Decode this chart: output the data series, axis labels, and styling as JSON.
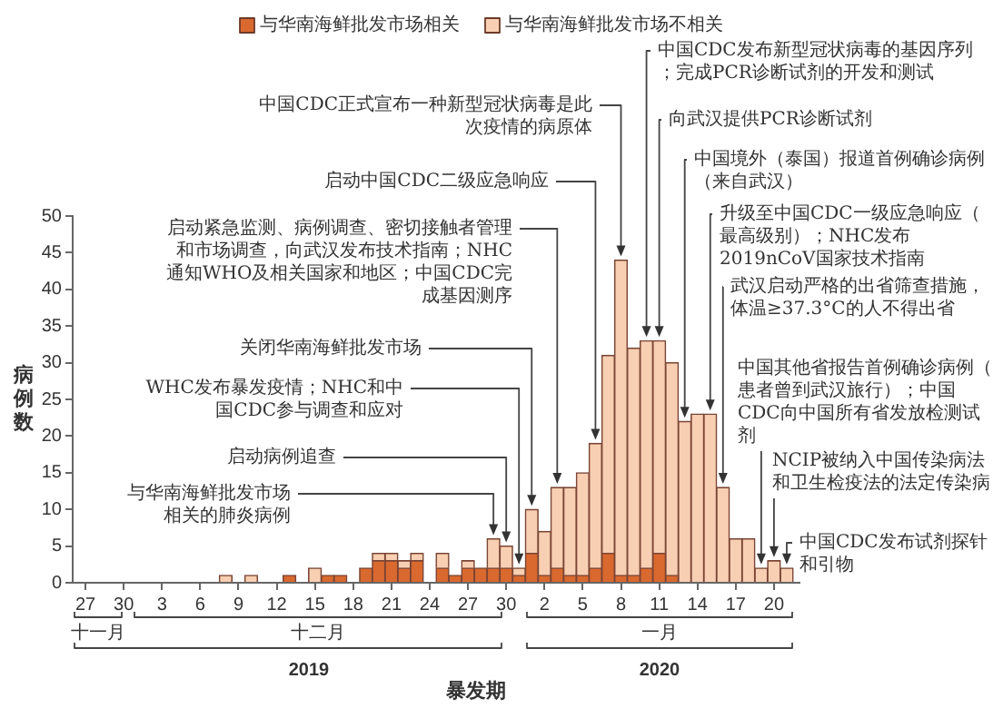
{
  "chart_data": {
    "type": "bar",
    "stacked": true,
    "xlabel": "暴发期",
    "ylabel": "病例数",
    "legend": "top",
    "x": [
      "2019-12-08",
      "2019-12-09",
      "2019-12-10",
      "2019-12-11",
      "2019-12-12",
      "2019-12-13",
      "2019-12-14",
      "2019-12-15",
      "2019-12-16",
      "2019-12-17",
      "2019-12-18",
      "2019-12-19",
      "2019-12-20",
      "2019-12-21",
      "2019-12-22",
      "2019-12-23",
      "2019-12-24",
      "2019-12-25",
      "2019-12-26",
      "2019-12-27",
      "2019-12-28",
      "2019-12-29",
      "2019-12-30",
      "2019-12-31",
      "2020-01-01",
      "2020-01-02",
      "2020-01-03",
      "2020-01-04",
      "2020-01-05",
      "2020-01-06",
      "2020-01-07",
      "2020-01-08",
      "2020-01-09",
      "2020-01-10",
      "2020-01-11",
      "2020-01-12",
      "2020-01-13",
      "2020-01-14",
      "2020-01-15",
      "2020-01-16",
      "2020-01-17",
      "2020-01-18",
      "2020-01-19",
      "2020-01-20",
      "2020-01-21"
    ],
    "series": [
      {
        "name": "与华南海鲜批发市场相关",
        "color": "#d9692e",
        "values": [
          0,
          0,
          0,
          0,
          0,
          1,
          0,
          0,
          1,
          1,
          0,
          2,
          3,
          3,
          2,
          3,
          0,
          2,
          1,
          2,
          2,
          2,
          2,
          1,
          4,
          1,
          2,
          1,
          1,
          2,
          4,
          1,
          1,
          2,
          4,
          1,
          0,
          0,
          0,
          0,
          0,
          0,
          0,
          0,
          0
        ]
      },
      {
        "name": "与华南海鲜批发市场不相关",
        "color": "#f8cfb2",
        "values": [
          1,
          0,
          1,
          0,
          0,
          0,
          0,
          2,
          0,
          0,
          0,
          0,
          1,
          1,
          1,
          1,
          0,
          2,
          0,
          1,
          0,
          4,
          3,
          1,
          6,
          6,
          11,
          12,
          14,
          17,
          27,
          43,
          31,
          31,
          29,
          29,
          22,
          23,
          23,
          13,
          6,
          6,
          2,
          3,
          2
        ]
      }
    ],
    "xlim": [
      "2019-11-26",
      "2020-01-22"
    ],
    "xticks": [
      {
        "value": "2019-11-27",
        "label": "27"
      },
      {
        "value": "2019-11-30",
        "label": "30"
      },
      {
        "value": "2019-12-03",
        "label": "3"
      },
      {
        "value": "2019-12-06",
        "label": "6"
      },
      {
        "value": "2019-12-09",
        "label": "9"
      },
      {
        "value": "2019-12-12",
        "label": "12"
      },
      {
        "value": "2019-12-15",
        "label": "15"
      },
      {
        "value": "2019-12-18",
        "label": "18"
      },
      {
        "value": "2019-12-21",
        "label": "21"
      },
      {
        "value": "2019-12-24",
        "label": "24"
      },
      {
        "value": "2019-12-27",
        "label": "27"
      },
      {
        "value": "2019-12-30",
        "label": "30"
      },
      {
        "value": "2020-01-02",
        "label": "2"
      },
      {
        "value": "2020-01-05",
        "label": "5"
      },
      {
        "value": "2020-01-08",
        "label": "8"
      },
      {
        "value": "2020-01-11",
        "label": "11"
      },
      {
        "value": "2020-01-14",
        "label": "14"
      },
      {
        "value": "2020-01-17",
        "label": "17"
      },
      {
        "value": "2020-01-20",
        "label": "20"
      }
    ],
    "ylim": [
      0,
      50
    ],
    "yticks": [
      0,
      5,
      10,
      15,
      20,
      25,
      30,
      35,
      40,
      45,
      50
    ],
    "annotations": [
      {
        "text": "与华南海鲜批发市场相关的肺炎病例",
        "x": "2019-12-29",
        "y": 6
      },
      {
        "text": "启动病例追查",
        "x": "2019-12-30",
        "y": 5
      },
      {
        "text": "WHC发布暴发疫情；NHC和中国CDC参与调查和应对",
        "x": "2019-12-31",
        "y": 2
      },
      {
        "text": "关闭华南海鲜批发市场",
        "x": "2020-01-01",
        "y": 10
      },
      {
        "text": "启动紧急监测、病例调查、密切接触者管理和市场调查，向武汉发布技术指南；NHC通知WHO及相关国家和地区；中国CDC完成基因测序",
        "x": "2020-01-03",
        "y": 13
      },
      {
        "text": "启动中国CDC二级应急响应",
        "x": "2020-01-06",
        "y": 19
      },
      {
        "text": "中国CDC正式宣布一种新型冠状病毒是此次疫情的病原体",
        "x": "2020-01-08",
        "y": 44
      },
      {
        "text": "中国CDC发布新型冠状病毒的基因序列；完成PCR诊断试剂的开发和测试",
        "x": "2020-01-10",
        "y": 33
      },
      {
        "text": "向武汉提供PCR诊断试剂",
        "x": "2020-01-11",
        "y": 33
      },
      {
        "text": "中国境外（泰国）报道首例确诊病例（来自武汉）",
        "x": "2020-01-13",
        "y": 22
      },
      {
        "text": "升级至中国CDC一级应急响应（最高级别）；NHC发布2019nCoV国家技术指南",
        "x": "2020-01-15",
        "y": 23
      },
      {
        "text": "武汉启动严格的出省筛查措施，体温≥37.3°C的人不得出省",
        "x": "2020-01-16",
        "y": 13
      },
      {
        "text": "中国其他省报告首例确诊病例（患者曾到武汉旅行）；中国CDC向中国所有省发放检测试剂",
        "x": "2020-01-19",
        "y": 2
      },
      {
        "text": "NCIP被纳入中国传染病法和卫生检疫法的法定传染病",
        "x": "2020-01-20",
        "y": 3
      },
      {
        "text": "中国CDC发布试剂探针和引物",
        "x": "2020-01-21",
        "y": 2
      },
      "十一月",
      "十二月",
      "一月",
      "2019",
      "2020"
    ]
  }
}
